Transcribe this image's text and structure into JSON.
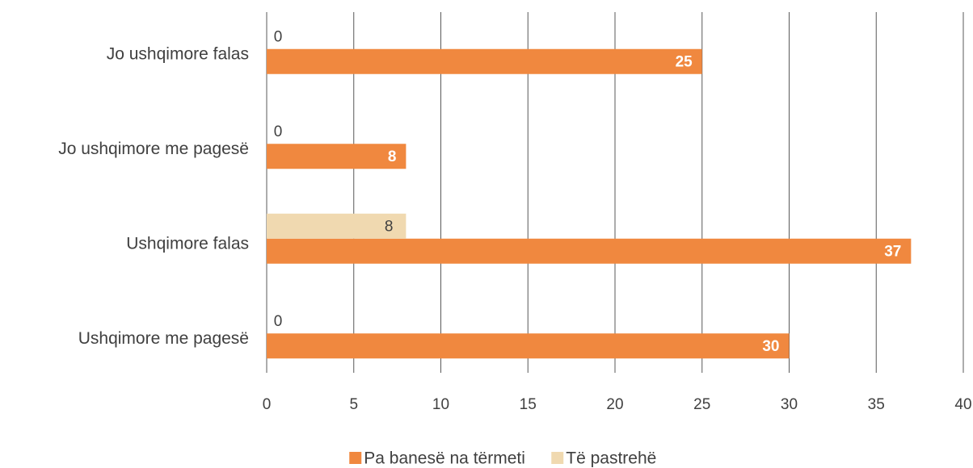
{
  "chart_data": {
    "type": "bar",
    "orientation": "horizontal",
    "categories": [
      "Jo ushqimore falas",
      "Jo ushqimore me pagesë",
      "Ushqimore falas",
      "Ushqimore me pagesë"
    ],
    "series": [
      {
        "name": "Pa banesë na tërmeti",
        "color": "#f0883f",
        "values": [
          25,
          8,
          37,
          30
        ]
      },
      {
        "name": "Të pastrehë",
        "color": "#f0d9b0",
        "values": [
          0,
          0,
          8,
          0
        ]
      }
    ],
    "xlim": [
      0,
      40
    ],
    "xticks": [
      0,
      5,
      10,
      15,
      20,
      25,
      30,
      35,
      40
    ],
    "grid": true,
    "legend": "bottom"
  }
}
